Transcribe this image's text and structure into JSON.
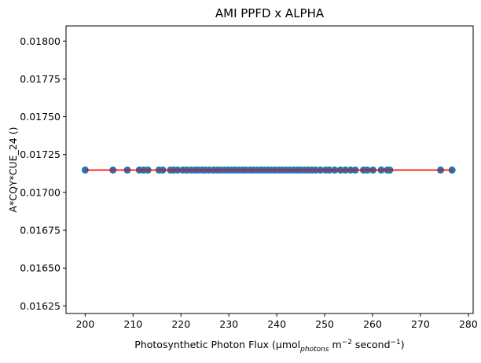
{
  "chart_data": {
    "type": "scatter",
    "title": "AMI PPFD x ALPHA",
    "xlabel": {
      "main": "Photosynthetic Photon Flux (μmol",
      "photons_sub": "photons",
      "m_part": " m",
      "m_exp": "−2",
      "sec_part": " second",
      "sec_exp": "−1",
      "close": ")"
    },
    "ylabel": "A*CQY*CUE_24 ()",
    "xlim": [
      196,
      281
    ],
    "ylim": [
      0.0162,
      0.0181
    ],
    "x_ticks": [
      200,
      210,
      220,
      230,
      240,
      250,
      260,
      270,
      280
    ],
    "x_tick_labels": [
      "200",
      "210",
      "220",
      "230",
      "240",
      "250",
      "260",
      "270",
      "280"
    ],
    "y_ticks": [
      0.01625,
      0.0165,
      0.01675,
      0.017,
      0.01725,
      0.0175,
      0.01775,
      0.018
    ],
    "y_tick_labels": [
      "0.01625",
      "0.01650",
      "0.01675",
      "0.01700",
      "0.01725",
      "0.01750",
      "0.01775",
      "0.01800"
    ],
    "grid": false,
    "series": [
      {
        "kind": "scatter",
        "color": "#1f77b4",
        "x": [
          200.0,
          205.8,
          208.8,
          211.3,
          212.2,
          213.1,
          215.4,
          216.2,
          217.8,
          218.5,
          219.3,
          220.4,
          221.2,
          222.1,
          222.9,
          223.6,
          224.4,
          225.1,
          225.9,
          226.8,
          227.6,
          228.3,
          229.1,
          229.8,
          230.6,
          231.3,
          232.1,
          232.9,
          233.6,
          234.4,
          235.1,
          235.9,
          236.7,
          237.4,
          238.2,
          238.9,
          239.7,
          240.5,
          241.2,
          242.0,
          242.7,
          243.5,
          244.3,
          245.0,
          245.8,
          246.6,
          247.3,
          248.1,
          249.1,
          250.2,
          251.0,
          252.1,
          253.3,
          254.3,
          255.4,
          256.4,
          258.1,
          258.9,
          260.1,
          261.8,
          263.1,
          263.6,
          274.2,
          276.6
        ],
        "y": [
          0.017148,
          0.017148,
          0.017148,
          0.017148,
          0.017148,
          0.017148,
          0.017148,
          0.017148,
          0.017148,
          0.017148,
          0.017148,
          0.017148,
          0.017148,
          0.017148,
          0.017148,
          0.017148,
          0.017148,
          0.017148,
          0.017148,
          0.017148,
          0.017148,
          0.017148,
          0.017148,
          0.017148,
          0.017148,
          0.017148,
          0.017148,
          0.017148,
          0.017148,
          0.017148,
          0.017148,
          0.017148,
          0.017148,
          0.017148,
          0.017148,
          0.017148,
          0.017148,
          0.017148,
          0.017148,
          0.017148,
          0.017148,
          0.017148,
          0.017148,
          0.017148,
          0.017148,
          0.017148,
          0.017148,
          0.017148,
          0.017148,
          0.017148,
          0.017148,
          0.017148,
          0.017148,
          0.017148,
          0.017148,
          0.017148,
          0.017148,
          0.017148,
          0.017148,
          0.017148,
          0.017148,
          0.017148,
          0.017148,
          0.017148
        ]
      },
      {
        "kind": "line",
        "color": "#ff0000",
        "x": [
          200.0,
          276.6
        ],
        "y": [
          0.017148,
          0.017148
        ]
      }
    ]
  }
}
